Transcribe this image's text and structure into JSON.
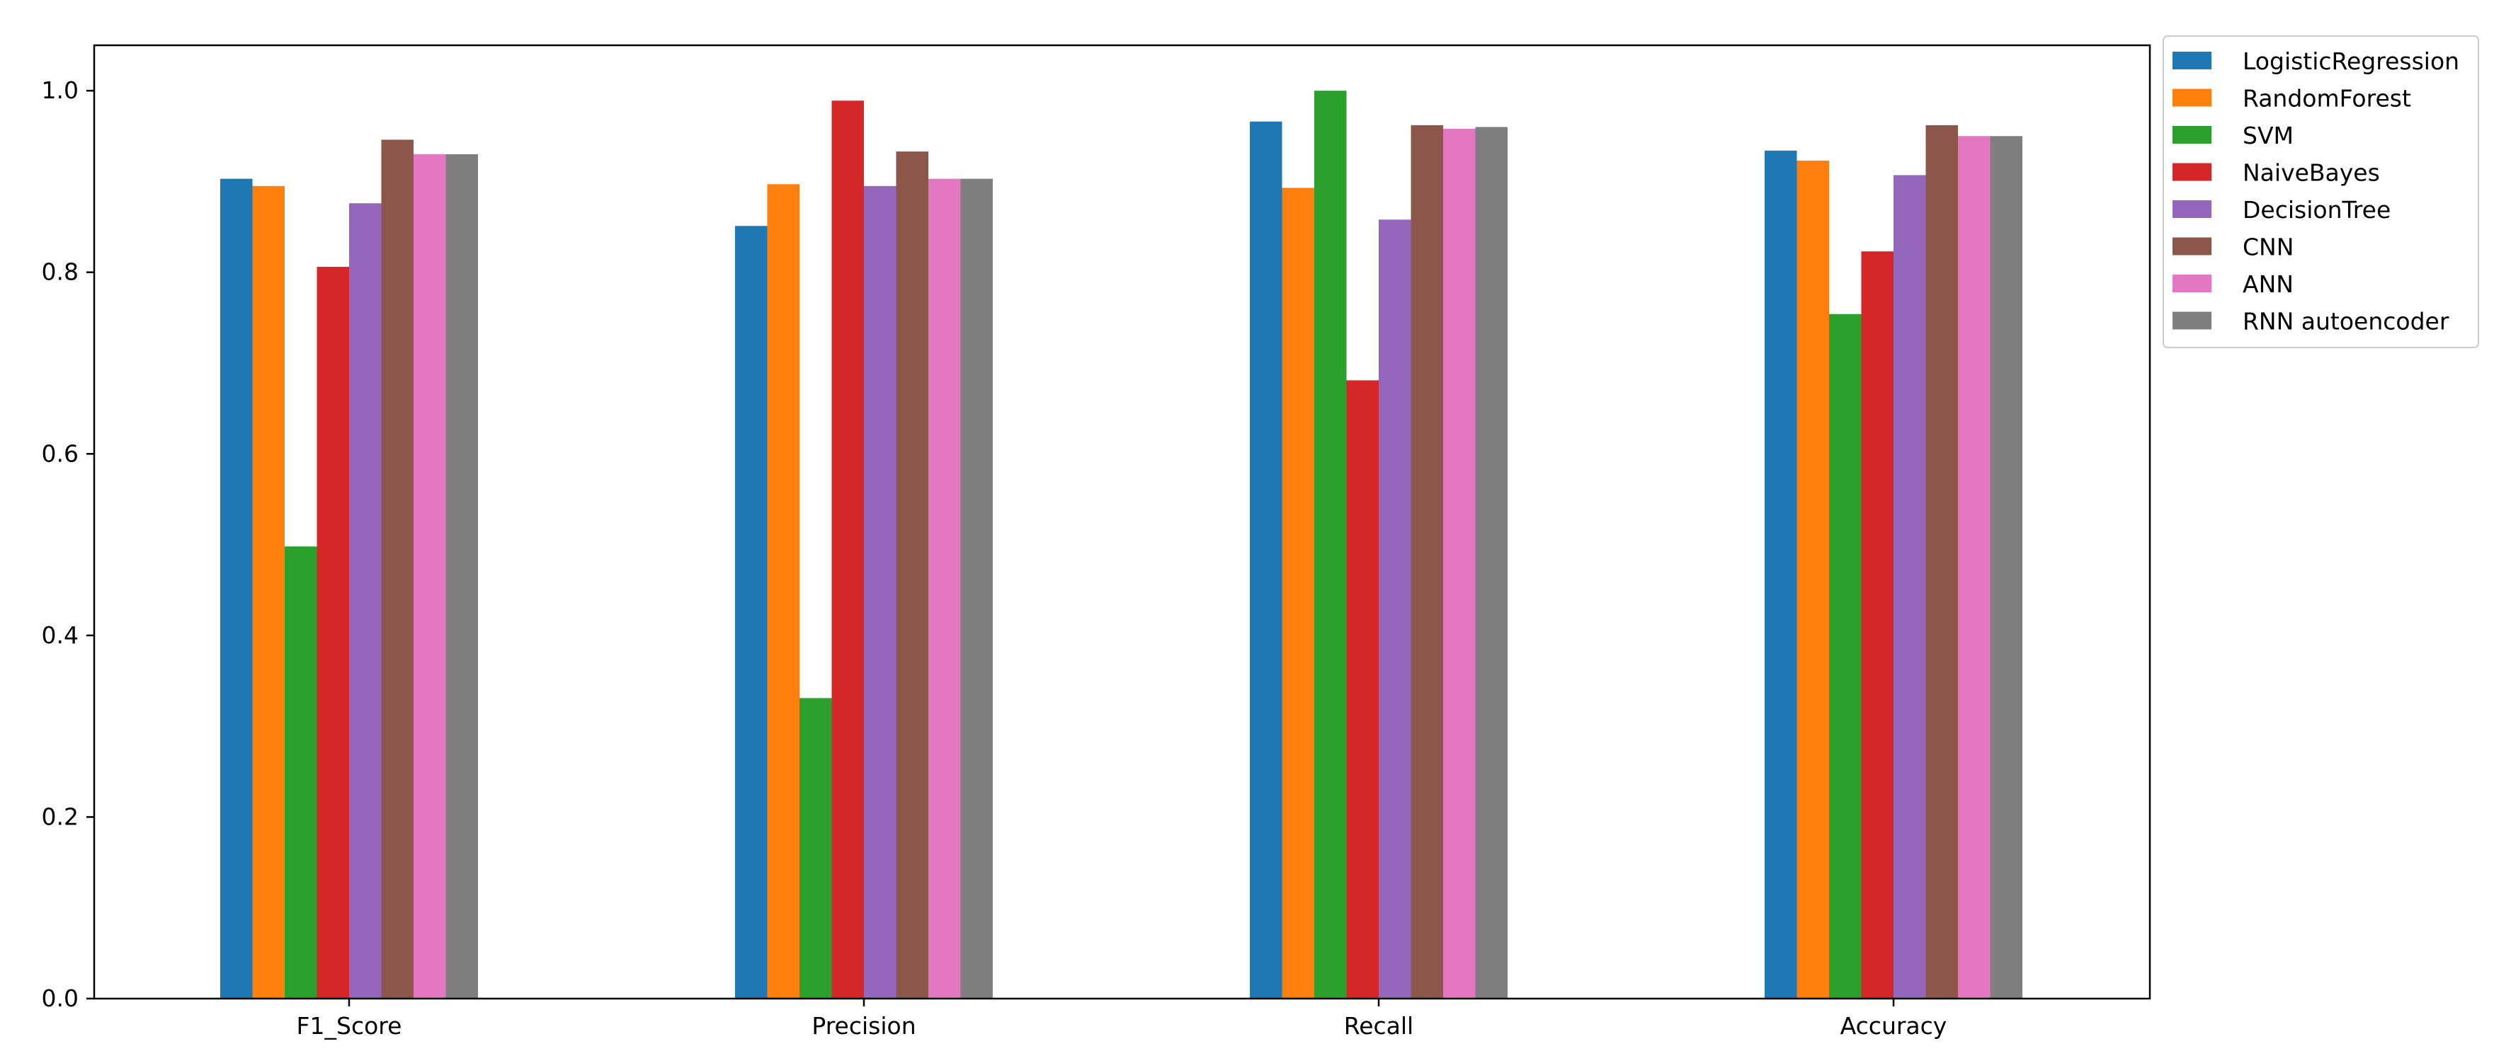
{
  "chart_data": {
    "type": "bar",
    "title": "",
    "xlabel": "",
    "ylabel": "",
    "categories": [
      "F1_Score",
      "Precision",
      "Recall",
      "Accuracy"
    ],
    "ylim": [
      0.0,
      1.05
    ],
    "yticks": [
      0.0,
      0.2,
      0.4,
      0.6,
      0.8,
      1.0
    ],
    "ytick_labels": [
      "0.0",
      "0.2",
      "0.4",
      "0.6",
      "0.8",
      "1.0"
    ],
    "grid": false,
    "legend_position": "outside top-right",
    "series": [
      {
        "name": "LogisticRegression",
        "color": "#1f77b4",
        "values": [
          0.903,
          0.851,
          0.966,
          0.934
        ]
      },
      {
        "name": "RandomForest",
        "color": "#ff7f0e",
        "values": [
          0.895,
          0.897,
          0.893,
          0.923
        ]
      },
      {
        "name": "SVM",
        "color": "#2ca02c",
        "values": [
          0.498,
          0.331,
          1.0,
          0.754
        ]
      },
      {
        "name": "NaiveBayes",
        "color": "#d62728",
        "values": [
          0.806,
          0.989,
          0.681,
          0.823
        ]
      },
      {
        "name": "DecisionTree",
        "color": "#9467bd",
        "values": [
          0.876,
          0.895,
          0.858,
          0.907
        ]
      },
      {
        "name": "CNN",
        "color": "#8c564b",
        "values": [
          0.946,
          0.933,
          0.962,
          0.962
        ]
      },
      {
        "name": "ANN",
        "color": "#e377c2",
        "values": [
          0.93,
          0.903,
          0.958,
          0.95
        ]
      },
      {
        "name": "RNN autoencoder",
        "color": "#7f7f7f",
        "values": [
          0.93,
          0.903,
          0.96,
          0.95
        ]
      }
    ]
  }
}
